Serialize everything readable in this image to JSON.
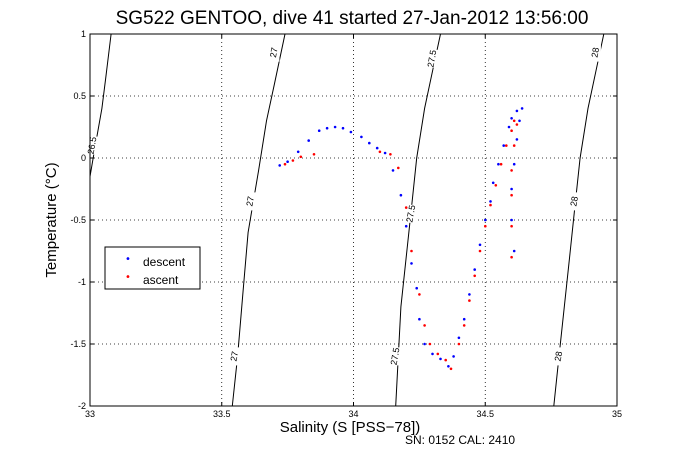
{
  "chart_data": {
    "type": "scatter",
    "title": "SG522 GENTOO, dive 41 started 27-Jan-2012 13:56:00",
    "xlabel": "Salinity (S [PSS−78])",
    "ylabel": "Temperature (°C)",
    "xlim": [
      33,
      35
    ],
    "ylim": [
      -2,
      1
    ],
    "xticks": [
      "33",
      "33.5",
      "34",
      "34.5",
      "35"
    ],
    "yticks": [
      "-2",
      "-1.5",
      "-1",
      "-0.5",
      "0",
      "0.5",
      "1"
    ],
    "grid": true,
    "legend_position": "middle-left",
    "note": "SN: 0152  CAL: 2410",
    "density_contours": [
      {
        "label": "26.5",
        "points": [
          [
            33.0,
            -0.15
          ],
          [
            33.02,
            0.1
          ],
          [
            33.045,
            0.4
          ],
          [
            33.06,
            0.65
          ],
          [
            33.08,
            1.0
          ]
        ],
        "label_at": [
          33.01,
          0.1
        ]
      },
      {
        "label": "27",
        "points": [
          [
            33.54,
            -2.0
          ],
          [
            33.56,
            -1.6
          ],
          [
            33.58,
            -1.1
          ],
          [
            33.6,
            -0.6
          ],
          [
            33.64,
            -0.1
          ],
          [
            33.67,
            0.3
          ],
          [
            33.7,
            0.6
          ],
          [
            33.74,
            1.0
          ]
        ],
        "label_at": [
          [
            33.55,
            -1.6
          ],
          [
            33.61,
            -0.35
          ],
          [
            33.7,
            0.85
          ]
        ]
      },
      {
        "label": "27.5",
        "points": [
          [
            34.16,
            -2.0
          ],
          [
            34.17,
            -1.6
          ],
          [
            34.18,
            -1.2
          ],
          [
            34.2,
            -0.8
          ],
          [
            34.22,
            -0.4
          ],
          [
            34.24,
            0.0
          ],
          [
            34.27,
            0.4
          ],
          [
            34.3,
            0.7
          ],
          [
            34.33,
            1.0
          ]
        ],
        "label_at": [
          [
            34.16,
            -1.6
          ],
          [
            34.22,
            -0.45
          ],
          [
            34.3,
            0.8
          ]
        ]
      },
      {
        "label": "28",
        "points": [
          [
            34.76,
            -2.0
          ],
          [
            34.78,
            -1.6
          ],
          [
            34.8,
            -1.2
          ],
          [
            34.82,
            -0.8
          ],
          [
            34.84,
            -0.4
          ],
          [
            34.86,
            0.0
          ],
          [
            34.89,
            0.4
          ],
          [
            34.92,
            0.7
          ],
          [
            34.95,
            1.0
          ]
        ],
        "label_at": [
          [
            34.78,
            -1.6
          ],
          [
            34.84,
            -0.35
          ],
          [
            34.92,
            0.85
          ]
        ]
      }
    ],
    "series": [
      {
        "name": "descent",
        "color": "#0000ff",
        "points": [
          [
            33.72,
            -0.06
          ],
          [
            33.75,
            -0.03
          ],
          [
            33.79,
            0.05
          ],
          [
            33.83,
            0.14
          ],
          [
            33.87,
            0.22
          ],
          [
            33.9,
            0.24
          ],
          [
            33.93,
            0.25
          ],
          [
            33.96,
            0.24
          ],
          [
            33.99,
            0.21
          ],
          [
            34.03,
            0.17
          ],
          [
            34.06,
            0.12
          ],
          [
            34.09,
            0.08
          ],
          [
            34.12,
            0.04
          ],
          [
            34.15,
            -0.1
          ],
          [
            34.18,
            -0.3
          ],
          [
            34.2,
            -0.55
          ],
          [
            34.22,
            -0.85
          ],
          [
            34.24,
            -1.05
          ],
          [
            34.25,
            -1.3
          ],
          [
            34.27,
            -1.5
          ],
          [
            34.3,
            -1.58
          ],
          [
            34.33,
            -1.62
          ],
          [
            34.36,
            -1.68
          ],
          [
            34.38,
            -1.6
          ],
          [
            34.4,
            -1.45
          ],
          [
            34.42,
            -1.3
          ],
          [
            34.44,
            -1.1
          ],
          [
            34.46,
            -0.9
          ],
          [
            34.48,
            -0.7
          ],
          [
            34.5,
            -0.5
          ],
          [
            34.52,
            -0.35
          ],
          [
            34.53,
            -0.2
          ],
          [
            34.55,
            -0.05
          ],
          [
            34.57,
            0.1
          ],
          [
            34.59,
            0.25
          ],
          [
            34.6,
            0.32
          ],
          [
            34.62,
            0.38
          ],
          [
            34.64,
            0.4
          ],
          [
            34.63,
            0.3
          ],
          [
            34.62,
            0.15
          ],
          [
            34.61,
            -0.05
          ],
          [
            34.6,
            -0.25
          ],
          [
            34.6,
            -0.5
          ],
          [
            34.61,
            -0.75
          ]
        ]
      },
      {
        "name": "ascent",
        "color": "#ff0000",
        "points": [
          [
            33.74,
            -0.05
          ],
          [
            33.77,
            -0.02
          ],
          [
            33.8,
            0.01
          ],
          [
            33.85,
            0.03
          ],
          [
            34.1,
            0.05
          ],
          [
            34.14,
            0.03
          ],
          [
            34.17,
            -0.08
          ],
          [
            34.2,
            -0.4
          ],
          [
            34.22,
            -0.75
          ],
          [
            34.25,
            -1.1
          ],
          [
            34.27,
            -1.35
          ],
          [
            34.29,
            -1.5
          ],
          [
            34.32,
            -1.58
          ],
          [
            34.35,
            -1.63
          ],
          [
            34.37,
            -1.7
          ],
          [
            34.4,
            -1.5
          ],
          [
            34.42,
            -1.35
          ],
          [
            34.44,
            -1.15
          ],
          [
            34.46,
            -0.95
          ],
          [
            34.48,
            -0.75
          ],
          [
            34.5,
            -0.55
          ],
          [
            34.52,
            -0.38
          ],
          [
            34.54,
            -0.22
          ],
          [
            34.56,
            -0.05
          ],
          [
            34.58,
            0.1
          ],
          [
            34.6,
            0.22
          ],
          [
            34.61,
            0.3
          ],
          [
            34.62,
            0.27
          ],
          [
            34.61,
            0.1
          ],
          [
            34.6,
            -0.1
          ],
          [
            34.6,
            -0.3
          ],
          [
            34.6,
            -0.55
          ],
          [
            34.6,
            -0.8
          ]
        ]
      }
    ]
  }
}
